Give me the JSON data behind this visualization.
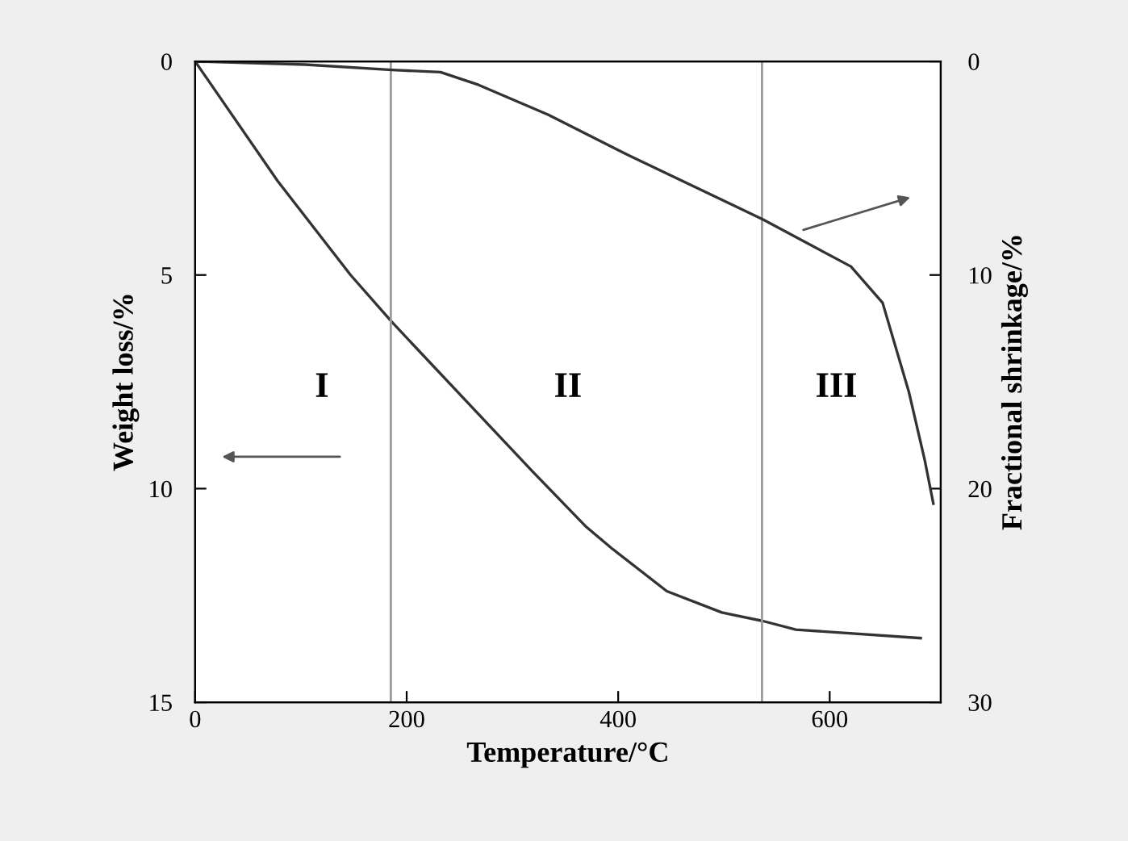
{
  "chart_data": {
    "type": "line",
    "xlabel": "Temperature/°C",
    "ylabel": "Weight loss/%",
    "y2label": "Fractional shrinkage/%",
    "xlim": [
      0,
      705
    ],
    "xticks": [
      0,
      200,
      400,
      600
    ],
    "ylim": [
      15,
      0
    ],
    "yticks": [
      0,
      5,
      10,
      15
    ],
    "y2lim": [
      30,
      0
    ],
    "y2ticks": [
      0,
      10,
      20,
      30
    ],
    "series": [
      {
        "color": "#333333",
        "x": [
          0,
          78,
          147,
          186,
          319,
          370,
          394,
          446,
          498,
          537,
          568,
          686
        ],
        "values": [
          0,
          2.8,
          5.0,
          6.1,
          9.6,
          10.9,
          11.4,
          12.4,
          12.9,
          13.1,
          13.3,
          13.5
        ]
      },
      {
        "color": "#333333",
        "axis": "y2",
        "x": [
          0,
          104,
          186,
          232,
          268,
          334,
          410,
          537,
          620,
          650,
          675,
          690,
          698
        ],
        "values": [
          0,
          0.15,
          0.4,
          0.5,
          1.1,
          2.5,
          4.4,
          7.4,
          9.6,
          11.3,
          15.5,
          18.7,
          20.7
        ]
      }
    ],
    "ref_lines": [
      {
        "axis": "x",
        "value": 185,
        "color": "#9a9a9a"
      },
      {
        "axis": "x",
        "value": 536,
        "color": "#9a9a9a"
      }
    ],
    "annotations": [
      "I",
      "II",
      "III"
    ],
    "grid": false,
    "legend": false,
    "marker": "none",
    "line_style": "solid"
  }
}
